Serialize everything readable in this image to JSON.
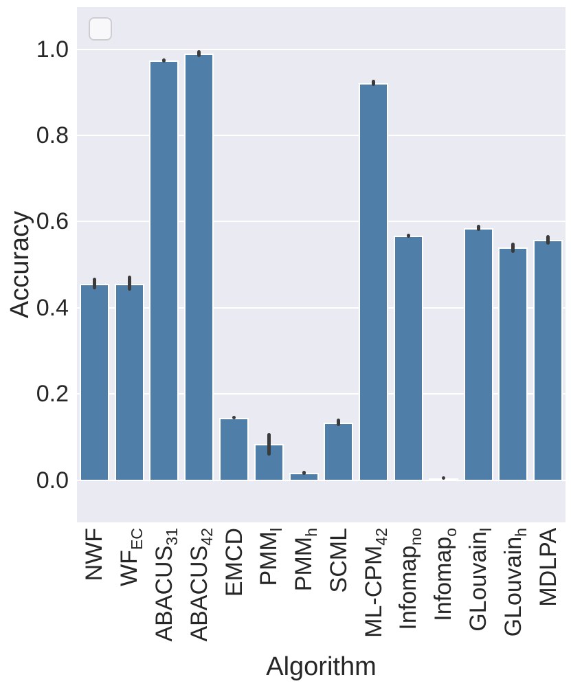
{
  "chart_data": {
    "type": "bar",
    "title": "",
    "xlabel": "Algorithm",
    "ylabel": "Accuracy",
    "ylim": [
      -0.097,
      1.099
    ],
    "yticks": [
      0.0,
      0.2,
      0.4,
      0.6,
      0.8,
      1.0
    ],
    "ytick_labels": [
      "0.0",
      "0.2",
      "0.4",
      "0.6",
      "0.8",
      "1.0"
    ],
    "grid": "horizontal-white-lines-on-light-gray",
    "legend": "empty-rounded-box-top-left",
    "plot_bg_color": "#eaeaf2",
    "bar_color": "#4f7ea8",
    "bar_edge_color": "#ffffff",
    "error_bar_color": "#3b3b3b",
    "text_color": "#262626",
    "categories": [
      {
        "label": "NWF",
        "sub": ""
      },
      {
        "label": "WF",
        "sub": "EC"
      },
      {
        "label": "ABACUS",
        "sub": "31"
      },
      {
        "label": "ABACUS",
        "sub": "42"
      },
      {
        "label": "EMCD",
        "sub": ""
      },
      {
        "label": "PMM",
        "sub": "l"
      },
      {
        "label": "PMM",
        "sub": "h"
      },
      {
        "label": "SCML",
        "sub": ""
      },
      {
        "label": "ML-CPM",
        "sub": "42"
      },
      {
        "label": "Infomap",
        "sub": "no"
      },
      {
        "label": "Infomap",
        "sub": "o"
      },
      {
        "label": "GLouvain",
        "sub": "l"
      },
      {
        "label": "GLouvain",
        "sub": "h"
      },
      {
        "label": "MDLPA",
        "sub": ""
      }
    ],
    "values": [
      0.455,
      0.456,
      0.974,
      0.99,
      0.145,
      0.083,
      0.017,
      0.134,
      0.922,
      0.567,
      0.004,
      0.585,
      0.54,
      0.558
    ],
    "errors": [
      {
        "lo": 0.442,
        "hi": 0.47
      },
      {
        "lo": 0.44,
        "hi": 0.474
      },
      {
        "lo": 0.969,
        "hi": 0.979
      },
      {
        "lo": 0.982,
        "hi": 0.998
      },
      {
        "lo": 0.141,
        "hi": 0.149
      },
      {
        "lo": 0.057,
        "hi": 0.109
      },
      {
        "lo": 0.012,
        "hi": 0.022
      },
      {
        "lo": 0.126,
        "hi": 0.142
      },
      {
        "lo": 0.915,
        "hi": 0.929
      },
      {
        "lo": 0.562,
        "hi": 0.572
      },
      {
        "lo": 0.001,
        "hi": 0.008
      },
      {
        "lo": 0.578,
        "hi": 0.592
      },
      {
        "lo": 0.528,
        "hi": 0.552
      },
      {
        "lo": 0.547,
        "hi": 0.568
      }
    ]
  }
}
